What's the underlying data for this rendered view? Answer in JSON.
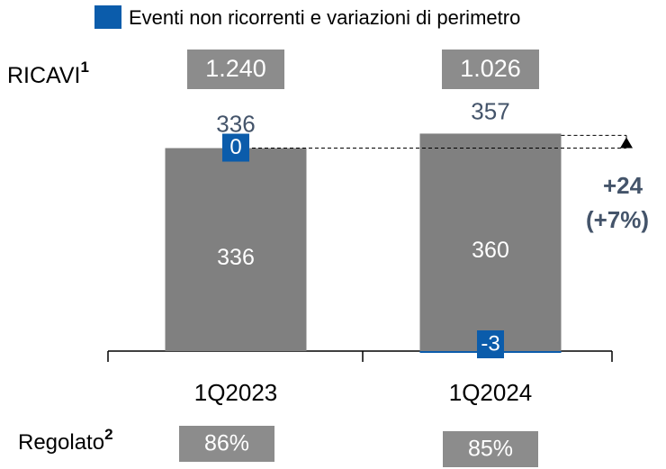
{
  "chart_data": {
    "type": "stacked_bar",
    "categories": [
      "1Q2023",
      "1Q2024"
    ],
    "series": [
      {
        "color": "#808080",
        "values": [
          336,
          360
        ]
      },
      {
        "name": "Eventi non ricorrenti e variazioni di perimetro",
        "color": "#0b5cab",
        "values": [
          0,
          -3
        ]
      }
    ],
    "totals": [
      336,
      357
    ],
    "ylim": [
      0,
      380
    ],
    "ricavi": {
      "label": "RICAVI",
      "note": "1",
      "values": [
        1240,
        1026
      ],
      "value_labels": [
        "1.240",
        "1.026"
      ]
    },
    "regolato": {
      "label": "Regolato",
      "note": "2",
      "values": [
        86,
        85
      ],
      "value_labels": [
        "86%",
        "85%"
      ]
    },
    "delta": {
      "values": [
        24,
        7
      ],
      "value_labels": [
        "+24",
        "(+7%)"
      ]
    }
  }
}
